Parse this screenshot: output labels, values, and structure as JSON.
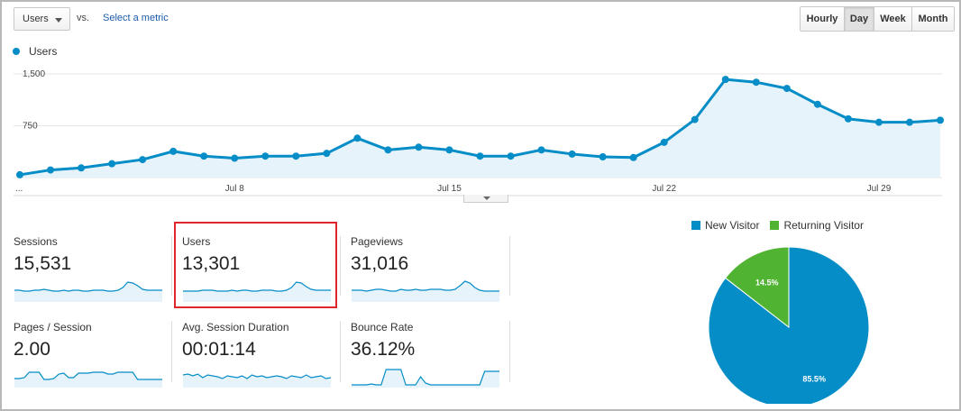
{
  "controls": {
    "metric_selector": "Users",
    "vs_label": "vs.",
    "select_metric_link": "Select a metric",
    "granularity": [
      {
        "label": "Hourly",
        "active": false
      },
      {
        "label": "Day",
        "active": true
      },
      {
        "label": "Week",
        "active": false
      },
      {
        "label": "Month",
        "active": false
      }
    ]
  },
  "chart_data": [
    {
      "type": "area",
      "legend": [
        {
          "name": "Users",
          "color": "#058dc7"
        }
      ],
      "y_ticks": [
        "1,500",
        "750"
      ],
      "y_tick_values": [
        1500,
        750
      ],
      "ylim": [
        0,
        1500
      ],
      "x_ticks": [
        {
          "label": "...",
          "index": 0
        },
        {
          "label": "Jul 8",
          "index": 7
        },
        {
          "label": "Jul 15",
          "index": 14
        },
        {
          "label": "Jul 22",
          "index": 21
        },
        {
          "label": "Jul 29",
          "index": 28
        }
      ],
      "series": [
        {
          "name": "Users",
          "color": "#058dc7",
          "values": [
            40,
            110,
            140,
            200,
            260,
            380,
            310,
            280,
            310,
            310,
            350,
            570,
            400,
            440,
            400,
            310,
            310,
            400,
            340,
            300,
            290,
            510,
            840,
            1420,
            1380,
            1290,
            1060,
            850,
            800,
            800,
            830
          ]
        }
      ]
    },
    {
      "type": "pie",
      "legend_items": [
        {
          "label": "New Visitor",
          "color": "#058dc7"
        },
        {
          "label": "Returning Visitor",
          "color": "#50b432"
        }
      ],
      "slices": [
        {
          "name": "New Visitor",
          "value": 85.5,
          "label": "85.5%",
          "color": "#058dc7"
        },
        {
          "name": "Returning Visitor",
          "value": 14.5,
          "label": "14.5%",
          "color": "#50b432"
        }
      ]
    }
  ],
  "metrics": [
    {
      "label": "Sessions",
      "value": "15,531",
      "spark": [
        13,
        13,
        12,
        12,
        13,
        13,
        14,
        13,
        12,
        12,
        13,
        12,
        13,
        13,
        12,
        12,
        13,
        13,
        13,
        12,
        12,
        13,
        16,
        22,
        21,
        18,
        14,
        13,
        13,
        13,
        13
      ]
    },
    {
      "label": "Users",
      "value": "13,301",
      "spark": [
        12,
        12,
        12,
        12,
        13,
        13,
        13,
        12,
        12,
        12,
        13,
        12,
        13,
        13,
        12,
        12,
        13,
        13,
        13,
        12,
        12,
        13,
        16,
        22,
        21,
        17,
        14,
        13,
        13,
        13,
        13
      ]
    },
    {
      "label": "Pageviews",
      "value": "31,016",
      "spark": [
        13,
        13,
        13,
        12,
        13,
        14,
        14,
        13,
        12,
        12,
        14,
        13,
        13,
        14,
        13,
        13,
        14,
        14,
        14,
        13,
        13,
        14,
        18,
        23,
        21,
        16,
        13,
        12,
        12,
        12,
        12
      ]
    },
    {
      "label": "Pages / Session",
      "value": "2.00",
      "spark": [
        10,
        10,
        11,
        17,
        17,
        17,
        9,
        9,
        10,
        15,
        16,
        11,
        11,
        16,
        16,
        16,
        17,
        17,
        17,
        15,
        15,
        17,
        17,
        17,
        17,
        9,
        9,
        9,
        9,
        9,
        9
      ]
    },
    {
      "label": "Avg. Session Duration",
      "value": "00:01:14",
      "spark": [
        14,
        15,
        13,
        15,
        11,
        14,
        13,
        12,
        10,
        13,
        12,
        11,
        13,
        10,
        14,
        12,
        13,
        11,
        12,
        13,
        12,
        10,
        13,
        12,
        11,
        14,
        11,
        12,
        13,
        10,
        11
      ]
    },
    {
      "label": "Bounce Rate",
      "value": "36.12%",
      "spark": [
        3,
        3,
        3,
        3,
        4,
        3,
        3,
        20,
        20,
        20,
        20,
        3,
        3,
        3,
        12,
        5,
        3,
        3,
        3,
        3,
        3,
        3,
        3,
        3,
        3,
        3,
        3,
        18,
        18,
        18,
        18
      ]
    }
  ]
}
